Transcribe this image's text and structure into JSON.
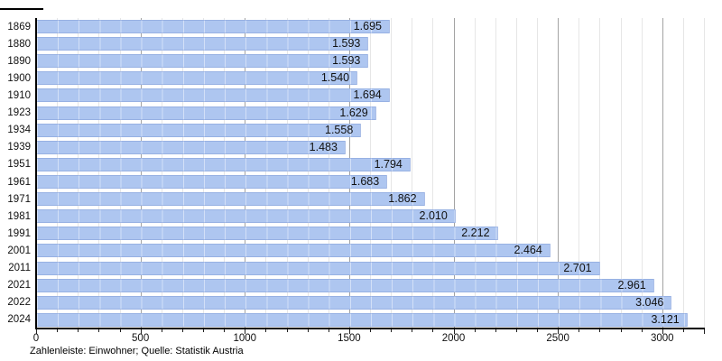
{
  "chart_data": {
    "type": "bar",
    "orientation": "horizontal",
    "categories": [
      "1869",
      "1880",
      "1890",
      "1900",
      "1910",
      "1923",
      "1934",
      "1939",
      "1951",
      "1961",
      "1971",
      "1981",
      "1991",
      "2001",
      "2011",
      "2021",
      "2022",
      "2024"
    ],
    "values": [
      1695,
      1593,
      1593,
      1540,
      1694,
      1629,
      1558,
      1483,
      1794,
      1683,
      1862,
      2010,
      2212,
      2464,
      2701,
      2961,
      3046,
      3121
    ],
    "value_labels": [
      "1.695",
      "1.593",
      "1.593",
      "1.540",
      "1.694",
      "1.629",
      "1.558",
      "1.483",
      "1.794",
      "1.683",
      "1.862",
      "2.010",
      "2.212",
      "2.464",
      "2.701",
      "2.961",
      "3.046",
      "3.121"
    ],
    "title": "",
    "xlabel": "",
    "ylabel": "",
    "xlim": [
      0,
      3200
    ],
    "x_tick_values": [
      0,
      500,
      1000,
      1500,
      2000,
      2500,
      3000
    ],
    "x_tick_labels": [
      "0",
      "500",
      "1000",
      "1500",
      "2000",
      "2500",
      "3000"
    ],
    "minor_grid_step": 100,
    "major_grid_step": 500,
    "grid": true,
    "legend": "none",
    "source_note": "Zahlenleiste: Einwohner; Quelle: Statistik Austria"
  },
  "colors": {
    "bar_fill": "#aec6f0",
    "bar_stripe": "rgba(255,255,255,0.45)",
    "grid_minor": "#e6e6e6",
    "grid_major": "#a3a3a3",
    "axis": "#000000",
    "text": "#111111"
  }
}
